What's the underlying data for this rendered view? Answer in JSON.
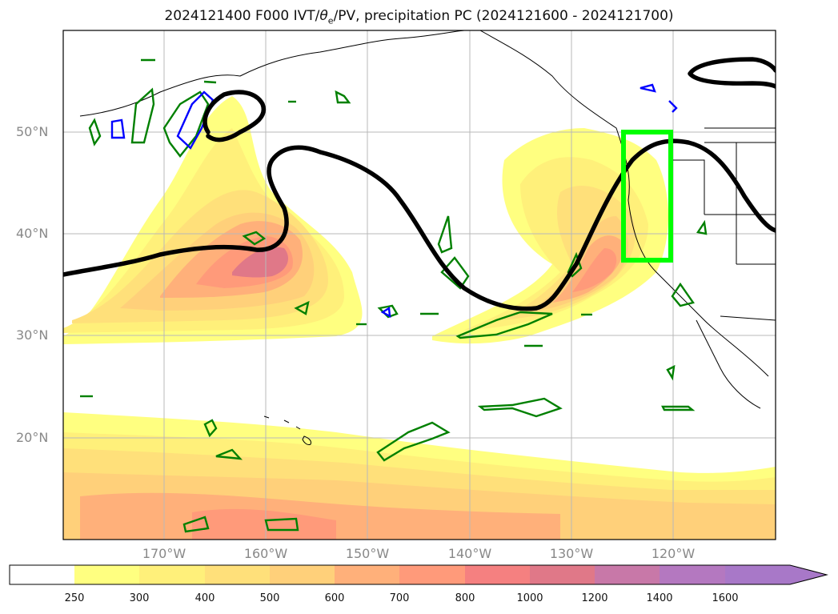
{
  "title": "2024121400 F000 IVT/θe/PV, precipitation PC (2024121600 - 2024121700)",
  "title_parts": {
    "prefix": "2024121400 F000 IVT/",
    "theta": "θ",
    "sub": "e",
    "suffix": "/PV, precipitation PC (2024121600 - 2024121700)"
  },
  "lat_labels": [
    "50°N",
    "40°N",
    "30°N",
    "20°N"
  ],
  "lon_labels": [
    "170°W",
    "160°W",
    "150°W",
    "140°W",
    "130°W",
    "120°W"
  ],
  "colorbar": {
    "ticks": [
      "250",
      "300",
      "400",
      "500",
      "600",
      "700",
      "800",
      "1000",
      "1200",
      "1400",
      "1600"
    ],
    "colors": [
      "#ffffff",
      "#ffff80",
      "#fff07a",
      "#ffe07a",
      "#ffd07a",
      "#ffb07a",
      "#ff9a7a",
      "#f58080",
      "#e07888",
      "#c878a8",
      "#b478c0",
      "#a878c8"
    ]
  },
  "colors": {
    "ivt_contour": "#000000",
    "pv_contour": "#008000",
    "theta_contour": "#0000ff",
    "box": "#00ff00"
  }
}
